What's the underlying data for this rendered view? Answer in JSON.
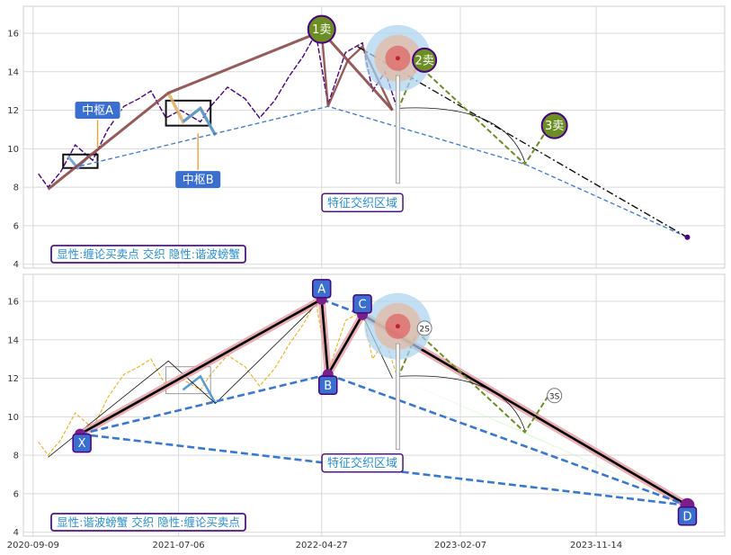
{
  "chart_data": [
    {
      "type": "line",
      "panel": "top",
      "ylim": [
        3.8,
        17.4
      ],
      "yticks": [
        4,
        6,
        8,
        10,
        12,
        14,
        16
      ],
      "legend_text": "显性:缠论买卖点 交织 隐性:谐波螃蟹",
      "annotations": {
        "zs_a": "中枢A",
        "zs_b": "中枢B",
        "region": "特征交织区域",
        "sell1": "1卖",
        "sell2": "2卖",
        "sell3": "3卖"
      },
      "series": [
        {
          "kind": "price",
          "color": "#4b0082",
          "x": [
            "2020-09-20",
            "2020-10-10",
            "2020-11-05",
            "2020-12-05",
            "2021-01-10",
            "2021-02-10",
            "2021-03-15",
            "2021-04-15",
            "2021-05-10",
            "2021-06-10",
            "2021-07-10",
            "2021-08-20",
            "2021-09-10",
            "2021-10-15",
            "2021-11-20",
            "2021-12-20",
            "2022-01-20",
            "2022-02-20",
            "2022-03-20",
            "2022-04-15",
            "2022-05-10",
            "2022-06-15",
            "2022-07-20",
            "2022-08-10",
            "2022-09-05",
            "2022-10-01"
          ],
          "y": [
            8.7,
            8.0,
            8.8,
            10.2,
            9.4,
            11.0,
            12.2,
            12.6,
            13.0,
            11.6,
            12.0,
            11.4,
            12.2,
            13.2,
            12.6,
            11.6,
            12.5,
            13.8,
            14.8,
            16.0,
            12.3,
            15.0,
            15.5,
            13.0,
            14.0,
            12.0
          ]
        },
        {
          "kind": "stroke",
          "color": "#8b4a4a",
          "x": [
            "2020-10-10",
            "2021-06-15",
            "2022-04-27",
            "2022-09-20"
          ],
          "y": [
            7.9,
            12.9,
            16.1,
            12.0
          ]
        }
      ],
      "lines": {
        "base_dashed_blue": {
          "x": [
            "2020-12-15",
            "2022-05-10",
            "2023-06-20",
            "2024-05-20"
          ],
          "y": [
            9.1,
            12.2,
            9.2,
            5.4
          ]
        },
        "dash_dot_black": {
          "x": [
            "2022-07-10",
            "2024-05-20"
          ],
          "y": [
            15.3,
            5.4
          ]
        },
        "green_dashed": {
          "x": [
            "2022-10-01",
            "2022-11-10",
            "2023-06-20",
            "2023-08-10"
          ],
          "y": [
            12.0,
            14.4,
            9.2,
            11.2
          ]
        }
      },
      "dot": {
        "x": "2024-05-20",
        "y": 5.4
      }
    },
    {
      "type": "line",
      "panel": "bottom",
      "ylim": [
        3.8,
        17.4
      ],
      "yticks": [
        4,
        6,
        8,
        10,
        12,
        14,
        16
      ],
      "legend_text": "显性:谐波螃蟹 交织 隐性:缠论买卖点",
      "annotations": {
        "region": "特征交织区域",
        "s2": "2S",
        "s3": "3S",
        "point_x": "X",
        "point_a": "A",
        "point_b": "B",
        "point_c": "C",
        "point_d": "D"
      },
      "series": [
        {
          "kind": "price",
          "color": "#f0b429",
          "x": [
            "2020-09-20",
            "2020-10-10",
            "2020-11-05",
            "2020-12-05",
            "2021-01-10",
            "2021-02-10",
            "2021-03-15",
            "2021-04-15",
            "2021-05-10",
            "2021-06-10",
            "2021-07-10",
            "2021-08-20",
            "2021-09-10",
            "2021-10-15",
            "2021-11-20",
            "2021-12-20",
            "2022-01-20",
            "2022-02-20",
            "2022-03-20",
            "2022-04-15",
            "2022-05-10",
            "2022-06-15",
            "2022-07-20",
            "2022-08-10",
            "2022-09-05",
            "2022-10-01"
          ],
          "y": [
            8.7,
            8.0,
            8.8,
            10.2,
            9.4,
            11.0,
            12.2,
            12.6,
            13.0,
            11.6,
            12.0,
            11.4,
            12.2,
            13.2,
            12.6,
            11.6,
            12.5,
            13.8,
            14.8,
            16.0,
            12.3,
            15.0,
            15.5,
            13.0,
            14.0,
            12.0
          ]
        },
        {
          "kind": "harmonic_xabcd",
          "color": "#000000",
          "x": [
            "2020-12-15",
            "2022-04-27",
            "2022-05-10",
            "2022-07-20",
            "2024-05-20"
          ],
          "y": [
            9.1,
            16.1,
            12.2,
            15.3,
            5.4
          ]
        }
      ],
      "lines": {
        "xb_dashed": {
          "x": [
            "2020-12-15",
            "2022-05-10"
          ],
          "y": [
            9.1,
            12.2
          ]
        },
        "xd_dashed": {
          "x": [
            "2020-12-15",
            "2024-05-20"
          ],
          "y": [
            9.1,
            5.4
          ]
        },
        "bd_dashed": {
          "x": [
            "2022-05-10",
            "2024-05-20"
          ],
          "y": [
            12.2,
            5.4
          ]
        },
        "ac_dashed": {
          "x": [
            "2022-04-27",
            "2022-07-20"
          ],
          "y": [
            16.1,
            15.3
          ]
        },
        "green_dashed": {
          "x": [
            "2022-10-01",
            "2022-11-10",
            "2023-06-20",
            "2023-08-10"
          ],
          "y": [
            12.0,
            14.4,
            9.2,
            11.2
          ]
        }
      }
    }
  ],
  "x_axis": {
    "min": "2020-08-20",
    "max": "2024-08-05",
    "ticks": [
      "2020-09-09",
      "2021-07-06",
      "2022-04-27",
      "2023-02-07",
      "2023-11-14"
    ]
  },
  "colors": {
    "grid": "#d9d9d9",
    "label_box": "#3a6fcf",
    "legend_border": "#4b1a7a",
    "sell_badge": "#6b8e23",
    "target_blue": "#a9d1ef",
    "target_tan": "#e3b9a3",
    "target_red": "#e06060"
  }
}
